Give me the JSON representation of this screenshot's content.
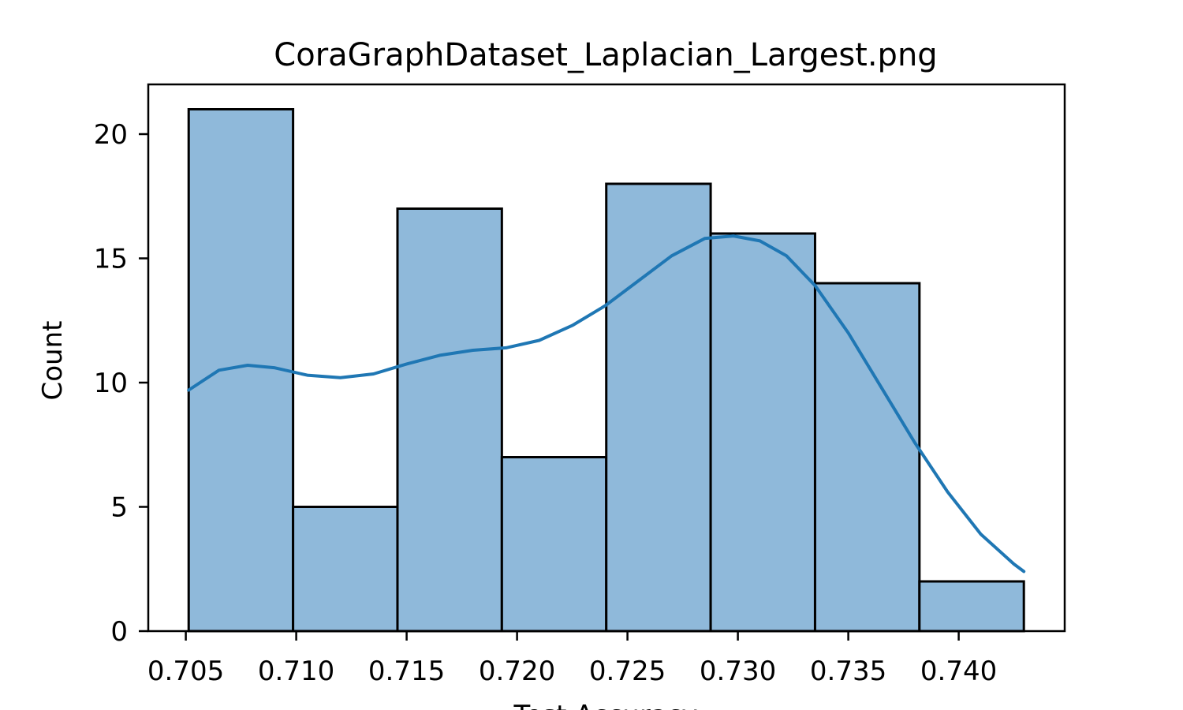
{
  "chart_data": {
    "type": "bar",
    "title": "CoraGraphDataset_Laplacian_Largest.png",
    "xlabel": "Test Accuracy",
    "ylabel": "Count",
    "bin_edges": [
      0.70513,
      0.709857,
      0.714585,
      0.719312,
      0.72404,
      0.728767,
      0.733495,
      0.738222,
      0.74295
    ],
    "values": [
      21,
      5,
      17,
      7,
      18,
      16,
      14,
      2
    ],
    "xlim": [
      0.7033,
      0.7448
    ],
    "ylim": [
      0,
      22
    ],
    "xticks": [
      0.705,
      0.71,
      0.715,
      0.72,
      0.725,
      0.73,
      0.735,
      0.74
    ],
    "xtick_labels": [
      "0.705",
      "0.710",
      "0.715",
      "0.720",
      "0.725",
      "0.730",
      "0.735",
      "0.740"
    ],
    "yticks": [
      0,
      5,
      10,
      15,
      20
    ],
    "ytick_labels": [
      "0",
      "5",
      "10",
      "15",
      "20"
    ],
    "kde": {
      "x": [
        0.70513,
        0.7065,
        0.7078,
        0.709,
        0.7105,
        0.712,
        0.7135,
        0.715,
        0.7165,
        0.718,
        0.7195,
        0.721,
        0.7225,
        0.724,
        0.7255,
        0.727,
        0.7285,
        0.7298,
        0.731,
        0.7322,
        0.7335,
        0.735,
        0.7365,
        0.738,
        0.7395,
        0.741,
        0.7425,
        0.74295
      ],
      "y": [
        9.7,
        10.5,
        10.7,
        10.6,
        10.3,
        10.2,
        10.35,
        10.75,
        11.1,
        11.3,
        11.4,
        11.7,
        12.3,
        13.1,
        14.1,
        15.1,
        15.8,
        15.9,
        15.7,
        15.1,
        13.9,
        12.0,
        9.8,
        7.6,
        5.6,
        3.9,
        2.7,
        2.4
      ]
    },
    "grid": false,
    "legend": "none",
    "colors": {
      "bar_fill": "#8fb9da",
      "bar_edge": "#000000",
      "kde_line": "#1f77b4",
      "axes": "#000000"
    }
  }
}
